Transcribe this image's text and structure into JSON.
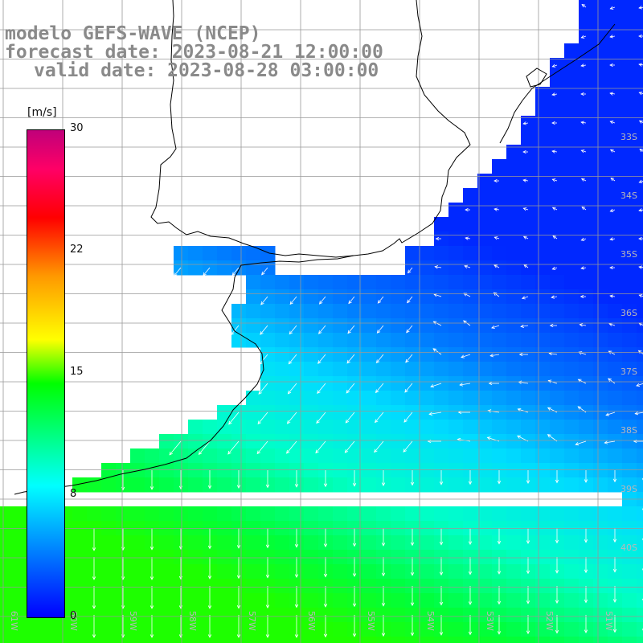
{
  "title": {
    "line1": "modelo GEFS-WAVE (NCEP)",
    "line2": "forecast date: 2023-08-21 12:00:00",
    "line3": "valid date: 2023-08-28 03:00:00"
  },
  "colorbar": {
    "unit": "[m/s]",
    "ticks": [
      "30",
      "22",
      "15",
      "8",
      "0"
    ],
    "min": 0,
    "max": 30
  },
  "map": {
    "variable": "wind speed",
    "lat_labels": [
      "33S",
      "34S",
      "35S",
      "36S",
      "37S",
      "38S",
      "39S",
      "40S"
    ],
    "lon_labels": [
      "61W",
      "60W",
      "59W",
      "58W",
      "57W",
      "56W",
      "55W",
      "54W",
      "53W",
      "52W",
      "51W"
    ],
    "colors": {
      "land": "#ffffff",
      "coast": "#000000",
      "grid": "#999999",
      "arrows": "#ffffff",
      "title_text": "#8a8a8a"
    }
  }
}
